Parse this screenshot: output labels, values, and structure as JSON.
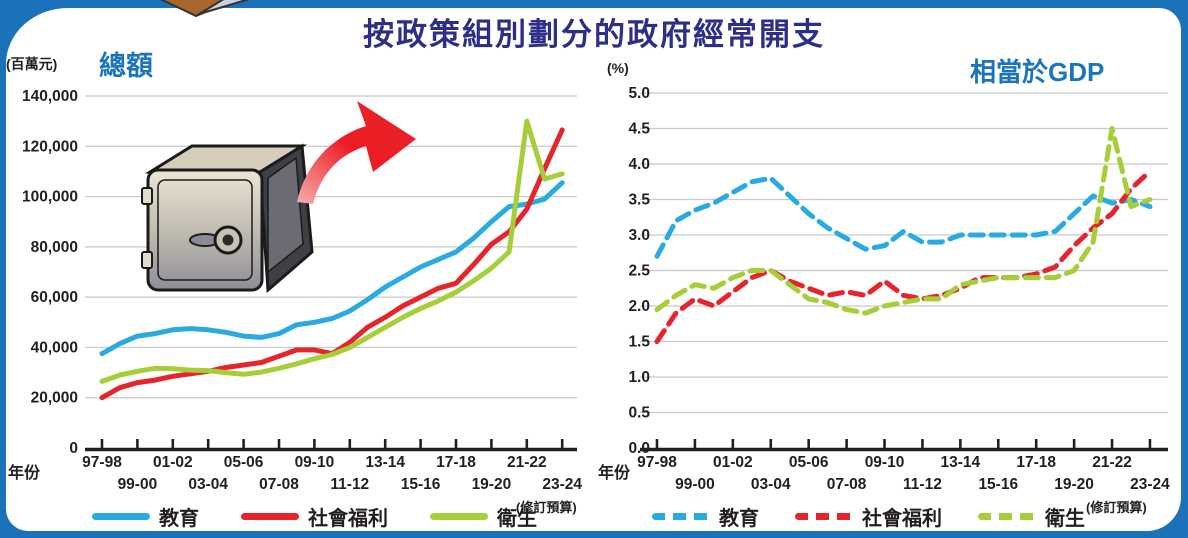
{
  "title": "按政策組別劃分的政府經常開支",
  "accent": {
    "frame_blue": "#1B72B8",
    "title_navy": "#2D2E87",
    "header_blue": "#1C75BC",
    "grid_gray": "#C9C9C9",
    "axis_black": "#231F20"
  },
  "chart_data": [
    {
      "type": "line",
      "title": "總額",
      "unit_label": "(百萬元)",
      "year_axis_label": "年份",
      "note": "(修訂預算)",
      "ylim": [
        0,
        140000
      ],
      "grid": true,
      "legend_position": "bottom",
      "line_style": "solid",
      "ytick_labels": [
        "0",
        "20,000",
        "40,000",
        "60,000",
        "80,000",
        "100,000",
        "120,000",
        "140,000"
      ],
      "x_tick_labels": [
        "97-98",
        "99-00",
        "01-02",
        "03-04",
        "05-06",
        "07-08",
        "09-10",
        "11-12",
        "13-14",
        "15-16",
        "17-18",
        "19-20",
        "21-22",
        "23-24"
      ],
      "categories": [
        "97-98",
        "98-99",
        "99-00",
        "00-01",
        "01-02",
        "02-03",
        "03-04",
        "04-05",
        "05-06",
        "06-07",
        "07-08",
        "08-09",
        "09-10",
        "10-11",
        "11-12",
        "12-13",
        "13-14",
        "14-15",
        "15-16",
        "16-17",
        "17-18",
        "18-19",
        "19-20",
        "20-21",
        "21-22",
        "22-23",
        "23-24"
      ],
      "series": [
        {
          "id": "education",
          "label": "教育",
          "color": "#29ABE2",
          "values": [
            37500,
            41500,
            44500,
            45500,
            47000,
            47500,
            47000,
            46000,
            44500,
            44000,
            45500,
            49000,
            50000,
            51500,
            54500,
            59000,
            64000,
            68000,
            72000,
            75000,
            78000,
            83500,
            90000,
            96000,
            97000,
            99000,
            105500
          ]
        },
        {
          "id": "social-welfare",
          "label": "社會福利",
          "color": "#E6242B",
          "values": [
            20000,
            24000,
            26000,
            27000,
            28500,
            29500,
            30500,
            32000,
            33000,
            34000,
            36500,
            39000,
            39000,
            37500,
            42000,
            48000,
            52000,
            56500,
            60000,
            63500,
            65500,
            73000,
            81000,
            86000,
            95000,
            111000,
            126500
          ]
        },
        {
          "id": "health",
          "label": "衛生",
          "color": "#A6CE39",
          "values": [
            26500,
            29000,
            30500,
            31700,
            31500,
            31000,
            30800,
            30000,
            29300,
            30200,
            31700,
            33500,
            35500,
            37200,
            40000,
            44000,
            48000,
            52000,
            55500,
            58500,
            62000,
            66500,
            71500,
            78000,
            130000,
            107000,
            109000
          ]
        }
      ]
    },
    {
      "type": "line",
      "title": "相當於GDP",
      "unit_label": "(%)",
      "year_axis_label": "年份",
      "note": "(修訂預算)",
      "ylim": [
        0,
        5.0
      ],
      "grid": true,
      "legend_position": "bottom",
      "line_style": "dashed",
      "ytick_labels": [
        "0.0",
        "0.5",
        "1.0",
        "1.5",
        "2.0",
        "2.5",
        "3.0",
        "3.5",
        "4.0",
        "4.5",
        "5.0"
      ],
      "x_tick_labels": [
        "97-98",
        "99-00",
        "01-02",
        "03-04",
        "05-06",
        "07-08",
        "09-10",
        "11-12",
        "13-14",
        "15-16",
        "17-18",
        "19-20",
        "21-22",
        "23-24"
      ],
      "categories": [
        "97-98",
        "98-99",
        "99-00",
        "00-01",
        "01-02",
        "02-03",
        "03-04",
        "04-05",
        "05-06",
        "06-07",
        "07-08",
        "08-09",
        "09-10",
        "10-11",
        "11-12",
        "12-13",
        "13-14",
        "14-15",
        "15-16",
        "16-17",
        "17-18",
        "18-19",
        "19-20",
        "20-21",
        "21-22",
        "22-23",
        "23-24"
      ],
      "series": [
        {
          "id": "education",
          "label": "教育",
          "color": "#29ABE2",
          "values": [
            2.7,
            3.2,
            3.35,
            3.45,
            3.6,
            3.75,
            3.8,
            3.55,
            3.3,
            3.1,
            2.95,
            2.8,
            2.85,
            3.05,
            2.9,
            2.9,
            3.0,
            3.0,
            3.0,
            3.0,
            3.0,
            3.05,
            3.3,
            3.55,
            3.45,
            3.5,
            3.4
          ]
        },
        {
          "id": "social-welfare",
          "label": "社會福利",
          "color": "#E6242B",
          "values": [
            1.5,
            1.9,
            2.1,
            2.0,
            2.2,
            2.4,
            2.5,
            2.35,
            2.25,
            2.15,
            2.2,
            2.15,
            2.35,
            2.15,
            2.1,
            2.15,
            2.25,
            2.4,
            2.4,
            2.4,
            2.45,
            2.55,
            2.85,
            3.1,
            3.3,
            3.65,
            3.9
          ]
        },
        {
          "id": "health",
          "label": "衛生",
          "color": "#A6CE39",
          "values": [
            1.95,
            2.15,
            2.3,
            2.25,
            2.4,
            2.5,
            2.5,
            2.3,
            2.1,
            2.05,
            1.95,
            1.9,
            2.0,
            2.05,
            2.1,
            2.1,
            2.3,
            2.35,
            2.4,
            2.4,
            2.4,
            2.4,
            2.5,
            2.9,
            4.5,
            3.4,
            3.5
          ]
        }
      ]
    }
  ]
}
